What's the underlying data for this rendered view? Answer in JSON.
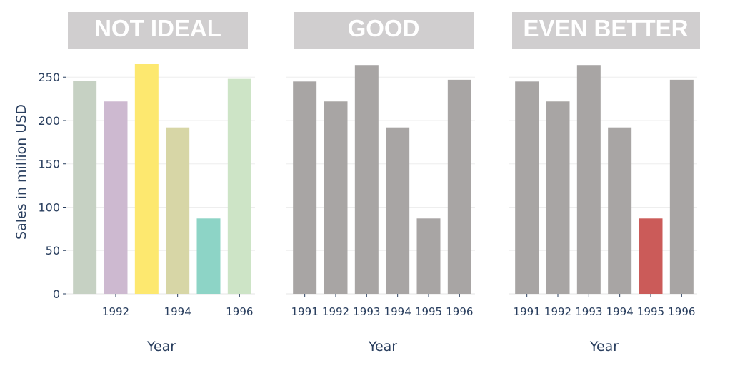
{
  "chart_data": [
    {
      "type": "bar",
      "title": "NOT IDEAL",
      "categories": [
        "1991",
        "1992",
        "1993",
        "1994",
        "1995",
        "1996"
      ],
      "values": [
        246,
        222,
        265,
        192,
        87,
        248
      ],
      "colors": [
        "#c6d1c3",
        "#cdb9d0",
        "#fde86f",
        "#d7d6a6",
        "#8dd4c6",
        "#cde4c6"
      ],
      "x_tick_labels": [
        "1992",
        "1994",
        "1996"
      ],
      "y_ticks": [
        "0",
        "50",
        "100",
        "150",
        "200",
        "250"
      ],
      "ylim": [
        0,
        265
      ],
      "xlabel": "Year",
      "ylabel": "Sales in million USD",
      "grid": true
    },
    {
      "type": "bar",
      "title": "GOOD",
      "categories": [
        "1991",
        "1992",
        "1993",
        "1994",
        "1995",
        "1996"
      ],
      "values": [
        245,
        222,
        264,
        192,
        87,
        247
      ],
      "colors": [
        "#a8a5a4",
        "#a8a5a4",
        "#a8a5a4",
        "#a8a5a4",
        "#a8a5a4",
        "#a8a5a4"
      ],
      "x_tick_labels": [
        "1991",
        "1992",
        "1993",
        "1994",
        "1995",
        "1996"
      ],
      "ylim": [
        0,
        265
      ],
      "xlabel": "Year",
      "grid": true
    },
    {
      "type": "bar",
      "title": "EVEN BETTER",
      "categories": [
        "1991",
        "1992",
        "1993",
        "1994",
        "1995",
        "1996"
      ],
      "values": [
        245,
        222,
        264,
        192,
        87,
        247
      ],
      "colors": [
        "#a8a5a4",
        "#a8a5a4",
        "#a8a5a4",
        "#a8a5a4",
        "#cb5b59",
        "#a8a5a4"
      ],
      "x_tick_labels": [
        "1991",
        "1992",
        "1993",
        "1994",
        "1995",
        "1996"
      ],
      "ylim": [
        0,
        265
      ],
      "xlabel": "Year",
      "grid": true
    }
  ],
  "style": {
    "title_box_color": "#d0cecf",
    "grid_color": "#eeeeee",
    "tick_color": "#2a3f5f"
  }
}
